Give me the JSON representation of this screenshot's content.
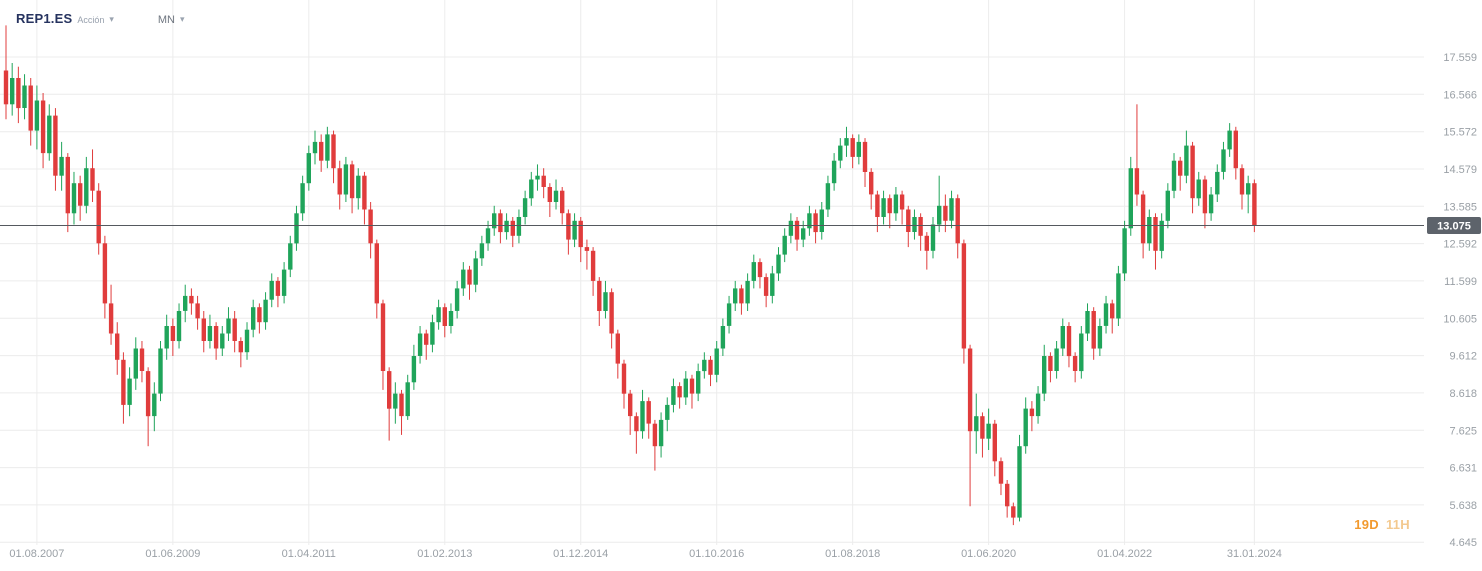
{
  "header": {
    "symbol": "REP1.ES",
    "instrument_type": "Acción",
    "timeframe": "MN"
  },
  "countdown": {
    "days": "19D",
    "hours": "11H"
  },
  "colors": {
    "up": "#1fa45a",
    "down": "#e03c3c",
    "grid": "#ececec",
    "axis_text": "#9aa0a6",
    "price_line": "#55595f",
    "badge_bg": "#5d636b",
    "badge_text": "#ffffff",
    "accent_orange": "#f29a2e",
    "accent_orange_light": "#f3c98f"
  },
  "chart_data": {
    "type": "candlestick",
    "title": "REP1.ES Acción",
    "timeframe": "MN",
    "current_price": 13.075,
    "grid": true,
    "ylim": [
      4.2,
      18.5
    ],
    "y_ticks": [
      17.559,
      16.566,
      15.572,
      14.579,
      13.585,
      12.592,
      11.599,
      10.605,
      9.612,
      8.618,
      7.625,
      6.631,
      5.638,
      4.645
    ],
    "x_ticks": [
      {
        "label": "01.08.2007",
        "month_index": 5
      },
      {
        "label": "01.06.2009",
        "month_index": 27
      },
      {
        "label": "01.04.2011",
        "month_index": 49
      },
      {
        "label": "01.02.2013",
        "month_index": 71
      },
      {
        "label": "01.12.2014",
        "month_index": 93
      },
      {
        "label": "01.10.2016",
        "month_index": 115
      },
      {
        "label": "01.08.2018",
        "month_index": 137
      },
      {
        "label": "01.06.2020",
        "month_index": 159
      },
      {
        "label": "01.04.2022",
        "month_index": 181
      },
      {
        "label": "31.01.2024",
        "month_index": 202
      }
    ],
    "start_month": "2007-03",
    "candles_format": [
      "open",
      "high",
      "low",
      "close"
    ],
    "candles": [
      [
        17.2,
        18.4,
        15.9,
        16.3
      ],
      [
        16.3,
        17.4,
        16.0,
        17.0
      ],
      [
        17.0,
        17.3,
        15.8,
        16.2
      ],
      [
        16.2,
        17.1,
        15.9,
        16.8
      ],
      [
        16.8,
        17.0,
        15.2,
        15.6
      ],
      [
        15.6,
        16.8,
        15.1,
        16.4
      ],
      [
        16.4,
        16.6,
        14.6,
        15.0
      ],
      [
        15.0,
        16.3,
        14.8,
        16.0
      ],
      [
        16.0,
        16.2,
        14.0,
        14.4
      ],
      [
        14.4,
        15.3,
        14.0,
        14.9
      ],
      [
        14.9,
        15.0,
        12.9,
        13.4
      ],
      [
        13.4,
        14.5,
        13.1,
        14.2
      ],
      [
        14.2,
        14.4,
        13.2,
        13.6
      ],
      [
        13.6,
        14.9,
        13.4,
        14.6
      ],
      [
        14.6,
        15.1,
        13.7,
        14.0
      ],
      [
        14.0,
        14.2,
        12.3,
        12.6
      ],
      [
        12.6,
        12.8,
        10.6,
        11.0
      ],
      [
        11.0,
        11.5,
        9.9,
        10.2
      ],
      [
        10.2,
        10.5,
        9.1,
        9.5
      ],
      [
        9.5,
        9.7,
        7.8,
        8.3
      ],
      [
        8.3,
        9.3,
        8.0,
        9.0
      ],
      [
        9.0,
        10.1,
        8.7,
        9.8
      ],
      [
        9.8,
        10.0,
        8.9,
        9.2
      ],
      [
        9.2,
        9.3,
        7.2,
        8.0
      ],
      [
        8.0,
        8.9,
        7.6,
        8.6
      ],
      [
        8.6,
        10.0,
        8.4,
        9.8
      ],
      [
        9.8,
        10.7,
        9.5,
        10.4
      ],
      [
        10.4,
        10.6,
        9.6,
        10.0
      ],
      [
        10.0,
        11.0,
        9.8,
        10.8
      ],
      [
        10.8,
        11.5,
        10.5,
        11.2
      ],
      [
        11.2,
        11.4,
        10.7,
        11.0
      ],
      [
        11.0,
        11.2,
        10.3,
        10.6
      ],
      [
        10.6,
        10.8,
        9.7,
        10.0
      ],
      [
        10.0,
        10.7,
        9.8,
        10.4
      ],
      [
        10.4,
        10.5,
        9.5,
        9.8
      ],
      [
        9.8,
        10.4,
        9.6,
        10.2
      ],
      [
        10.2,
        10.9,
        10.0,
        10.6
      ],
      [
        10.6,
        10.8,
        9.7,
        10.0
      ],
      [
        10.0,
        10.1,
        9.3,
        9.7
      ],
      [
        9.7,
        10.5,
        9.5,
        10.3
      ],
      [
        10.3,
        11.1,
        10.1,
        10.9
      ],
      [
        10.9,
        11.0,
        10.2,
        10.5
      ],
      [
        10.5,
        11.3,
        10.3,
        11.1
      ],
      [
        11.1,
        11.8,
        10.9,
        11.6
      ],
      [
        11.6,
        11.7,
        10.9,
        11.2
      ],
      [
        11.2,
        12.1,
        11.0,
        11.9
      ],
      [
        11.9,
        12.8,
        11.7,
        12.6
      ],
      [
        12.6,
        13.6,
        12.4,
        13.4
      ],
      [
        13.4,
        14.4,
        13.2,
        14.2
      ],
      [
        14.2,
        15.2,
        14.0,
        15.0
      ],
      [
        15.0,
        15.6,
        14.7,
        15.3
      ],
      [
        15.3,
        15.5,
        14.5,
        14.8
      ],
      [
        14.8,
        15.7,
        14.6,
        15.5
      ],
      [
        15.5,
        15.6,
        14.2,
        14.6
      ],
      [
        14.6,
        14.8,
        13.5,
        13.9
      ],
      [
        13.9,
        14.9,
        13.7,
        14.7
      ],
      [
        14.7,
        14.8,
        13.4,
        13.8
      ],
      [
        13.8,
        14.6,
        13.5,
        14.4
      ],
      [
        14.4,
        14.5,
        13.1,
        13.5
      ],
      [
        13.5,
        13.7,
        12.2,
        12.6
      ],
      [
        12.6,
        12.7,
        10.6,
        11.0
      ],
      [
        11.0,
        11.1,
        8.7,
        9.2
      ],
      [
        9.2,
        9.3,
        7.35,
        8.2
      ],
      [
        8.2,
        8.9,
        7.8,
        8.6
      ],
      [
        8.6,
        8.7,
        7.5,
        8.0
      ],
      [
        8.0,
        9.1,
        7.9,
        8.9
      ],
      [
        8.9,
        9.9,
        8.7,
        9.6
      ],
      [
        9.6,
        10.4,
        9.4,
        10.2
      ],
      [
        10.2,
        10.3,
        9.5,
        9.9
      ],
      [
        9.9,
        10.7,
        9.7,
        10.5
      ],
      [
        10.5,
        11.1,
        10.3,
        10.9
      ],
      [
        10.9,
        11.0,
        10.1,
        10.4
      ],
      [
        10.4,
        11.0,
        10.2,
        10.8
      ],
      [
        10.8,
        11.6,
        10.6,
        11.4
      ],
      [
        11.4,
        12.1,
        11.2,
        11.9
      ],
      [
        11.9,
        12.0,
        11.1,
        11.5
      ],
      [
        11.5,
        12.4,
        11.3,
        12.2
      ],
      [
        12.2,
        12.8,
        12.0,
        12.6
      ],
      [
        12.6,
        13.2,
        12.4,
        13.0
      ],
      [
        13.0,
        13.6,
        12.8,
        13.4
      ],
      [
        13.4,
        13.5,
        12.6,
        12.9
      ],
      [
        12.9,
        13.4,
        12.7,
        13.2
      ],
      [
        13.2,
        13.3,
        12.5,
        12.8
      ],
      [
        12.8,
        13.5,
        12.6,
        13.3
      ],
      [
        13.3,
        14.0,
        13.1,
        13.8
      ],
      [
        13.8,
        14.5,
        13.6,
        14.3
      ],
      [
        14.3,
        14.7,
        14.0,
        14.4
      ],
      [
        14.4,
        14.6,
        13.8,
        14.1
      ],
      [
        14.1,
        14.2,
        13.3,
        13.7
      ],
      [
        13.7,
        14.3,
        13.5,
        14.0
      ],
      [
        14.0,
        14.1,
        13.1,
        13.4
      ],
      [
        13.4,
        13.5,
        12.3,
        12.7
      ],
      [
        12.7,
        13.4,
        12.5,
        13.2
      ],
      [
        13.2,
        13.3,
        12.1,
        12.5
      ],
      [
        12.5,
        12.7,
        11.9,
        12.4
      ],
      [
        12.4,
        12.5,
        11.2,
        11.6
      ],
      [
        11.6,
        11.7,
        10.4,
        10.8
      ],
      [
        10.8,
        11.6,
        10.6,
        11.3
      ],
      [
        11.3,
        11.4,
        9.8,
        10.2
      ],
      [
        10.2,
        10.3,
        9.0,
        9.4
      ],
      [
        9.4,
        9.5,
        8.2,
        8.6
      ],
      [
        8.6,
        8.7,
        7.5,
        8.0
      ],
      [
        8.0,
        8.1,
        7.0,
        7.6
      ],
      [
        7.6,
        8.7,
        7.4,
        8.4
      ],
      [
        8.4,
        8.5,
        7.4,
        7.8
      ],
      [
        7.8,
        7.9,
        6.55,
        7.2
      ],
      [
        7.2,
        8.1,
        6.9,
        7.9
      ],
      [
        7.9,
        8.5,
        7.6,
        8.3
      ],
      [
        8.3,
        9.0,
        8.1,
        8.8
      ],
      [
        8.8,
        8.9,
        8.2,
        8.5
      ],
      [
        8.5,
        9.2,
        8.3,
        9.0
      ],
      [
        9.0,
        9.1,
        8.2,
        8.6
      ],
      [
        8.6,
        9.4,
        8.4,
        9.2
      ],
      [
        9.2,
        9.7,
        9.0,
        9.5
      ],
      [
        9.5,
        9.6,
        8.8,
        9.1
      ],
      [
        9.1,
        10.0,
        8.9,
        9.8
      ],
      [
        9.8,
        10.6,
        9.6,
        10.4
      ],
      [
        10.4,
        11.2,
        10.2,
        11.0
      ],
      [
        11.0,
        11.6,
        10.8,
        11.4
      ],
      [
        11.4,
        11.5,
        10.7,
        11.0
      ],
      [
        11.0,
        11.8,
        10.8,
        11.6
      ],
      [
        11.6,
        12.3,
        11.4,
        12.1
      ],
      [
        12.1,
        12.2,
        11.4,
        11.7
      ],
      [
        11.7,
        11.8,
        10.9,
        11.2
      ],
      [
        11.2,
        12.0,
        11.0,
        11.8
      ],
      [
        11.8,
        12.5,
        11.6,
        12.3
      ],
      [
        12.3,
        13.0,
        12.1,
        12.8
      ],
      [
        12.8,
        13.4,
        12.6,
        13.2
      ],
      [
        13.2,
        13.3,
        12.4,
        12.7
      ],
      [
        12.7,
        13.2,
        12.5,
        13.0
      ],
      [
        13.0,
        13.6,
        12.8,
        13.4
      ],
      [
        13.4,
        13.5,
        12.6,
        12.9
      ],
      [
        12.9,
        13.7,
        12.7,
        13.5
      ],
      [
        13.5,
        14.4,
        13.3,
        14.2
      ],
      [
        14.2,
        15.0,
        14.0,
        14.8
      ],
      [
        14.8,
        15.4,
        14.6,
        15.2
      ],
      [
        15.2,
        15.7,
        14.9,
        15.4
      ],
      [
        15.4,
        15.5,
        14.6,
        14.9
      ],
      [
        14.9,
        15.5,
        14.7,
        15.3
      ],
      [
        15.3,
        15.4,
        14.1,
        14.5
      ],
      [
        14.5,
        14.6,
        13.5,
        13.9
      ],
      [
        13.9,
        14.0,
        12.9,
        13.3
      ],
      [
        13.3,
        14.0,
        13.1,
        13.8
      ],
      [
        13.8,
        13.9,
        13.0,
        13.4
      ],
      [
        13.4,
        14.1,
        13.2,
        13.9
      ],
      [
        13.9,
        14.0,
        13.1,
        13.5
      ],
      [
        13.5,
        13.6,
        12.5,
        12.9
      ],
      [
        12.9,
        13.5,
        12.7,
        13.3
      ],
      [
        13.3,
        13.4,
        12.4,
        12.8
      ],
      [
        12.8,
        12.9,
        11.9,
        12.4
      ],
      [
        12.4,
        13.3,
        12.2,
        13.1
      ],
      [
        13.1,
        14.4,
        12.9,
        13.6
      ],
      [
        13.6,
        13.9,
        12.9,
        13.2
      ],
      [
        13.2,
        14.0,
        13.0,
        13.8
      ],
      [
        13.8,
        13.9,
        12.2,
        12.6
      ],
      [
        12.6,
        12.7,
        9.4,
        9.8
      ],
      [
        9.8,
        9.9,
        5.6,
        7.6
      ],
      [
        7.6,
        8.6,
        7.0,
        8.0
      ],
      [
        8.0,
        8.1,
        6.9,
        7.4
      ],
      [
        7.4,
        8.2,
        7.1,
        7.8
      ],
      [
        7.8,
        7.9,
        6.4,
        6.8
      ],
      [
        6.8,
        6.9,
        5.9,
        6.2
      ],
      [
        6.2,
        6.3,
        5.3,
        5.6
      ],
      [
        5.6,
        5.7,
        5.1,
        5.3
      ],
      [
        5.3,
        7.5,
        5.2,
        7.2
      ],
      [
        7.2,
        8.5,
        7.0,
        8.2
      ],
      [
        8.2,
        8.4,
        7.6,
        8.0
      ],
      [
        8.0,
        8.8,
        7.8,
        8.6
      ],
      [
        8.6,
        9.9,
        8.4,
        9.6
      ],
      [
        9.6,
        9.7,
        8.9,
        9.2
      ],
      [
        9.2,
        10.0,
        9.0,
        9.8
      ],
      [
        9.8,
        10.6,
        9.6,
        10.4
      ],
      [
        10.4,
        10.5,
        9.3,
        9.6
      ],
      [
        9.6,
        9.7,
        8.9,
        9.2
      ],
      [
        9.2,
        10.4,
        9.0,
        10.2
      ],
      [
        10.2,
        11.0,
        10.0,
        10.8
      ],
      [
        10.8,
        10.9,
        9.5,
        9.8
      ],
      [
        9.8,
        10.6,
        9.6,
        10.4
      ],
      [
        10.4,
        11.2,
        10.2,
        11.0
      ],
      [
        11.0,
        11.1,
        10.2,
        10.6
      ],
      [
        10.6,
        12.0,
        10.4,
        11.8
      ],
      [
        11.8,
        13.2,
        11.6,
        13.0
      ],
      [
        13.0,
        14.9,
        12.8,
        14.6
      ],
      [
        14.6,
        16.3,
        13.6,
        13.9
      ],
      [
        13.9,
        14.0,
        12.2,
        12.6
      ],
      [
        12.6,
        13.5,
        12.4,
        13.3
      ],
      [
        13.3,
        13.4,
        11.9,
        12.4
      ],
      [
        12.4,
        13.4,
        12.2,
        13.2
      ],
      [
        13.2,
        14.2,
        13.0,
        14.0
      ],
      [
        14.0,
        15.0,
        13.8,
        14.8
      ],
      [
        14.8,
        14.9,
        14.0,
        14.4
      ],
      [
        14.4,
        15.6,
        14.2,
        15.2
      ],
      [
        15.2,
        15.3,
        13.4,
        13.8
      ],
      [
        13.8,
        14.5,
        13.6,
        14.3
      ],
      [
        14.3,
        14.4,
        13.0,
        13.4
      ],
      [
        13.4,
        14.1,
        13.2,
        13.9
      ],
      [
        13.9,
        14.7,
        13.7,
        14.5
      ],
      [
        14.5,
        15.3,
        14.3,
        15.1
      ],
      [
        15.1,
        15.8,
        14.9,
        15.6
      ],
      [
        15.6,
        15.7,
        14.3,
        14.6
      ],
      [
        14.6,
        14.7,
        13.5,
        13.9
      ],
      [
        13.9,
        14.4,
        13.4,
        14.2
      ],
      [
        14.2,
        14.3,
        12.9,
        13.075
      ]
    ]
  }
}
